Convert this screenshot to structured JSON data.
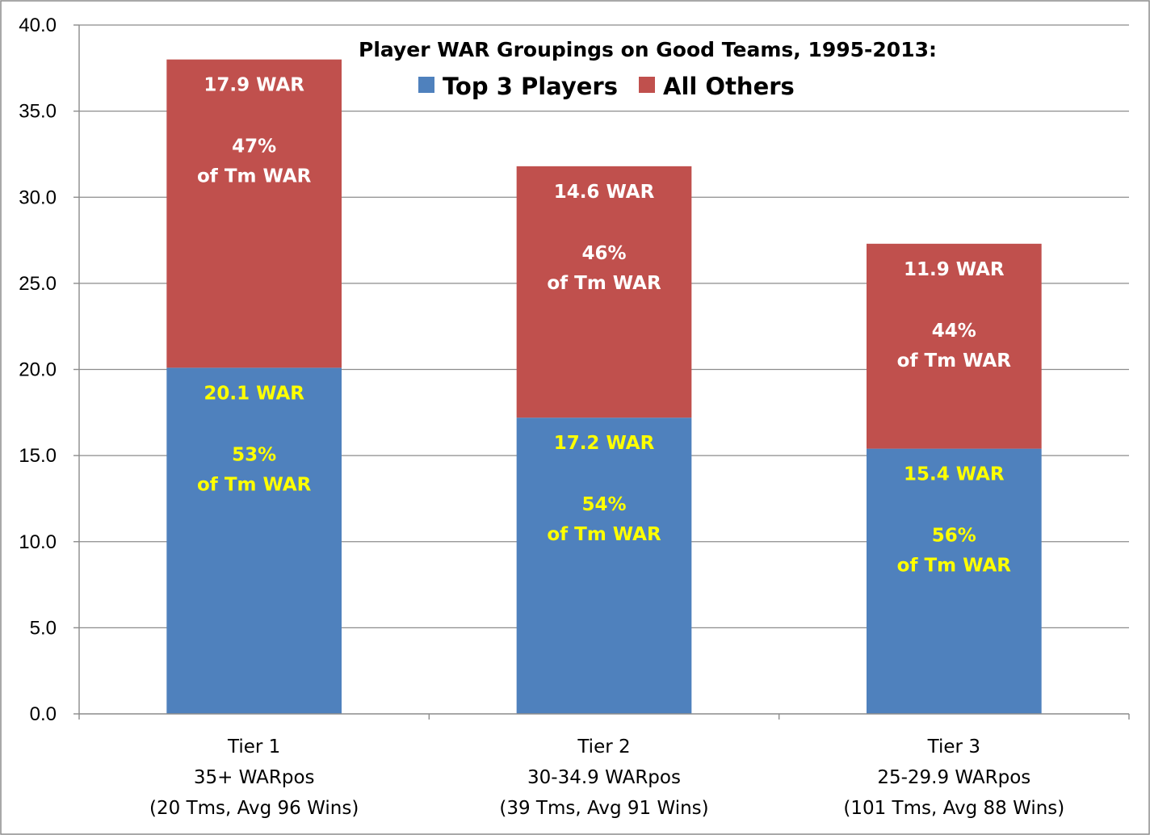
{
  "chart_data": {
    "type": "bar",
    "stacked": true,
    "title": "Player WAR Groupings on Good Teams, 1995-2013:",
    "xlabel": "",
    "ylabel": "",
    "ylim": [
      0,
      40
    ],
    "yticks": [
      "0.0",
      "5.0",
      "10.0",
      "15.0",
      "20.0",
      "25.0",
      "30.0",
      "35.0",
      "40.0"
    ],
    "grid": true,
    "legend_position": "top-center",
    "categories": [
      [
        "Tier 1",
        "35+ WARpos",
        "(20 Tms, Avg 96 Wins)"
      ],
      [
        "Tier 2",
        "30-34.9 WARpos",
        "(39 Tms, Avg 91 Wins)"
      ],
      [
        "Tier 3",
        "25-29.9 WARpos",
        "(101 Tms, Avg 88 Wins)"
      ]
    ],
    "series": [
      {
        "name": "Top 3 Players",
        "color": "#4f81bd",
        "label_color": "#ffff00",
        "values": [
          20.1,
          17.2,
          15.4
        ],
        "value_labels": [
          "20.1 WAR",
          "17.2 WAR",
          "15.4 WAR"
        ],
        "pct_labels": [
          "53%",
          "54%",
          "56%"
        ],
        "pct_suffix": "of Tm WAR"
      },
      {
        "name": "All Others",
        "color": "#c0504d",
        "label_color": "#ffffff",
        "values": [
          17.9,
          14.6,
          11.9
        ],
        "value_labels": [
          "17.9 WAR",
          "14.6 WAR",
          "11.9 WAR"
        ],
        "pct_labels": [
          "47%",
          "46%",
          "44%"
        ],
        "pct_suffix": "of Tm WAR"
      }
    ]
  }
}
